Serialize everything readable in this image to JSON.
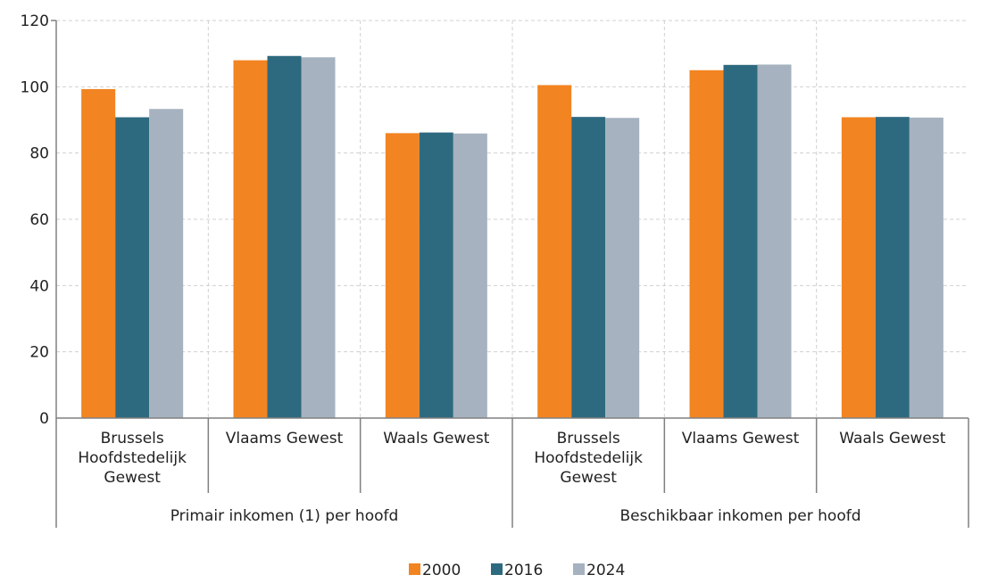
{
  "chart_data": {
    "type": "bar",
    "groups": [
      {
        "label": "Primair inkomen (1) per hoofd",
        "categories": [
          [
            "Brussels",
            "Hoofdstedelijk",
            "Gewest"
          ],
          [
            "Vlaams Gewest"
          ],
          [
            "Waals Gewest"
          ]
        ]
      },
      {
        "label": "Beschikbaar inkomen per hoofd",
        "categories": [
          [
            "Brussels",
            "Hoofdstedelijk",
            "Gewest"
          ],
          [
            "Vlaams Gewest"
          ],
          [
            "Waals Gewest"
          ]
        ]
      }
    ],
    "series": [
      {
        "name": "2000",
        "color": "#f28422",
        "values": [
          99.3,
          108.0,
          86.0,
          100.5,
          105.0,
          90.8
        ]
      },
      {
        "name": "2016",
        "color": "#2e6a7f",
        "values": [
          90.8,
          109.3,
          86.2,
          90.9,
          106.6,
          90.9
        ]
      },
      {
        "name": "2024",
        "color": "#a6b2bf",
        "values": [
          93.3,
          108.9,
          85.9,
          90.6,
          106.7,
          90.7
        ]
      }
    ],
    "ylim": [
      0,
      120
    ],
    "yticks": [
      "0",
      "20",
      "40",
      "60",
      "80",
      "100",
      "120"
    ],
    "grid": true,
    "legend_position": "bottom"
  }
}
